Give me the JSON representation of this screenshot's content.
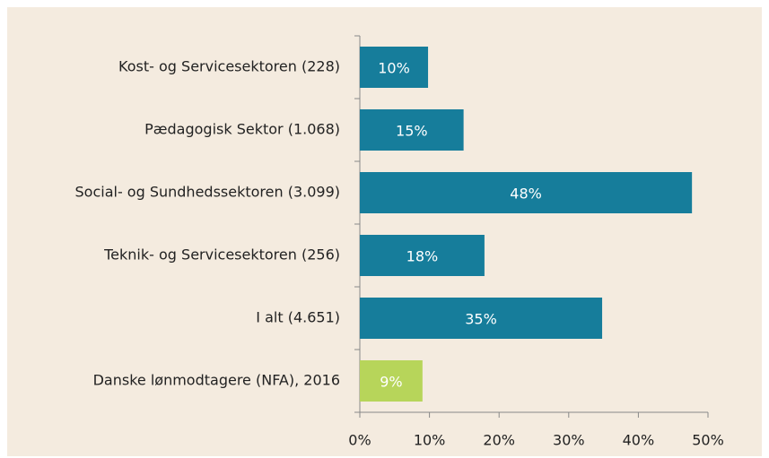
{
  "chart_data": {
    "type": "barh",
    "categories": [
      "Kost- og Servicesektoren (228)",
      "Pædagogisk Sektor (1.068)",
      "Social- og Sundhedssektoren (3.099)",
      "Teknik- og Servicesektoren (256)",
      "I alt (4.651)",
      "Danske lønmodtagere (NFA), 2016"
    ],
    "values": [
      9.8,
      14.9,
      47.7,
      17.9,
      34.8,
      9.0
    ],
    "value_labels": [
      "10%",
      "15%",
      "48%",
      "18%",
      "35%",
      "9%"
    ],
    "colors": [
      "#167d9b",
      "#167d9b",
      "#167d9b",
      "#167d9b",
      "#167d9b",
      "#b7d55a"
    ],
    "xlim": [
      0,
      50
    ],
    "xticks": [
      {
        "value": 0,
        "label": "0%"
      },
      {
        "value": 10,
        "label": "10%"
      },
      {
        "value": 20,
        "label": "20%"
      },
      {
        "value": 30,
        "label": "30%"
      },
      {
        "value": 40,
        "label": "40%"
      },
      {
        "value": 50,
        "label": "50%"
      }
    ]
  }
}
